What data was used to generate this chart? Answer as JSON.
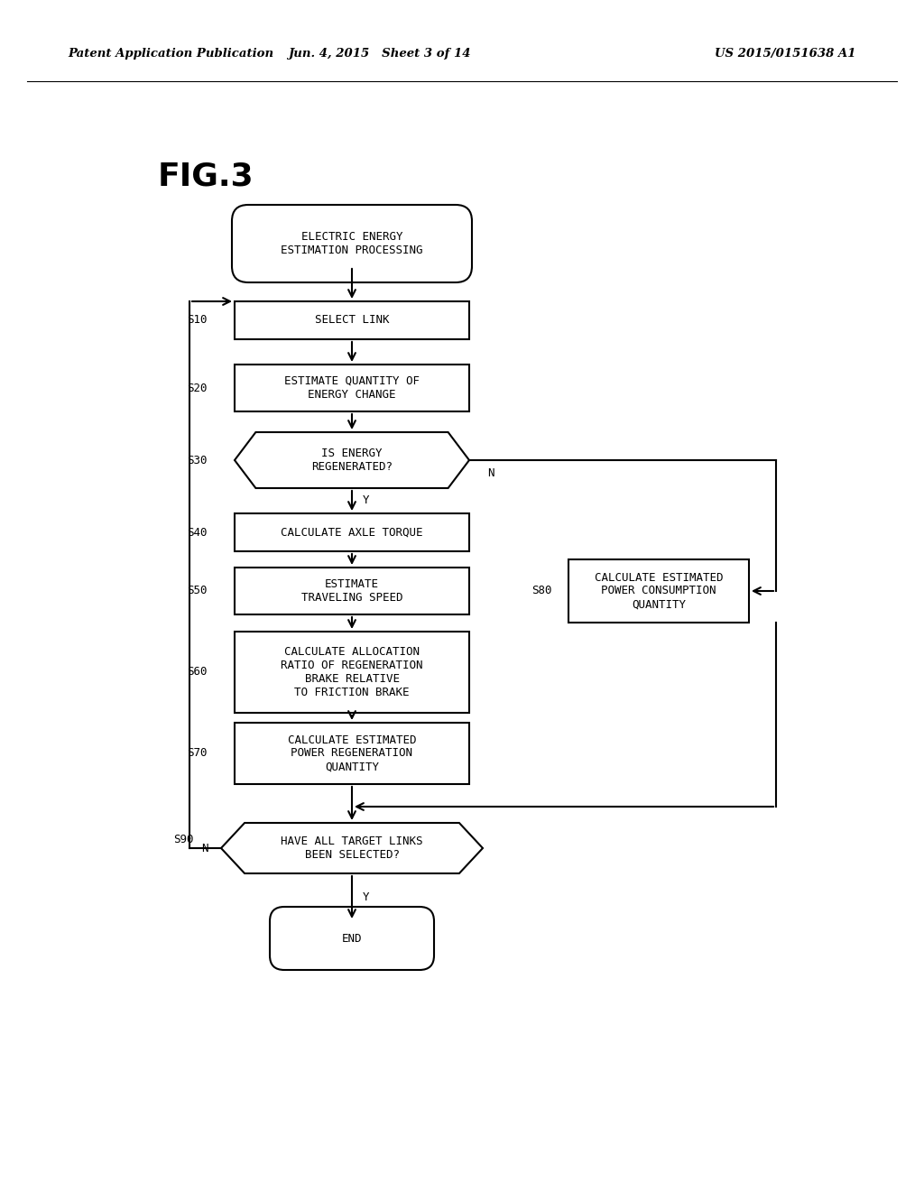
{
  "title": "FIG.3",
  "header_left": "Patent Application Publication",
  "header_center": "Jun. 4, 2015   Sheet 3 of 14",
  "header_right": "US 2015/0151638 A1",
  "bg_color": "#ffffff",
  "nodes": {
    "start_label": "ELECTRIC ENERGY\nESTIMATION PROCESSING",
    "S10_label": "SELECT LINK",
    "S20_label": "ESTIMATE QUANTITY OF\nENERGY CHANGE",
    "S30_label": "IS ENERGY\nREGENERATED?",
    "S40_label": "CALCULATE AXLE TORQUE",
    "S50_label": "ESTIMATE\nTRAVELING SPEED",
    "S60_label": "CALCULATE ALLOCATION\nRATIO OF REGENERATION\nBRAKE RELATIVE\nTO FRICTION BRAKE",
    "S70_label": "CALCULATE ESTIMATED\nPOWER REGENERATION\nQUANTITY",
    "S80_label": "CALCULATE ESTIMATED\nPOWER CONSUMPTION\nQUANTITY",
    "S90_label": "HAVE ALL TARGET LINKS\nBEEN SELECTED?",
    "end_label": "END"
  },
  "step_labels": [
    "S10",
    "S20",
    "S30",
    "S40",
    "S50",
    "S60",
    "S70",
    "S80",
    "S90"
  ],
  "yn_labels": {
    "S30_N": "N",
    "S30_Y": "Y",
    "S90_N": "N",
    "S90_Y": "Y"
  }
}
